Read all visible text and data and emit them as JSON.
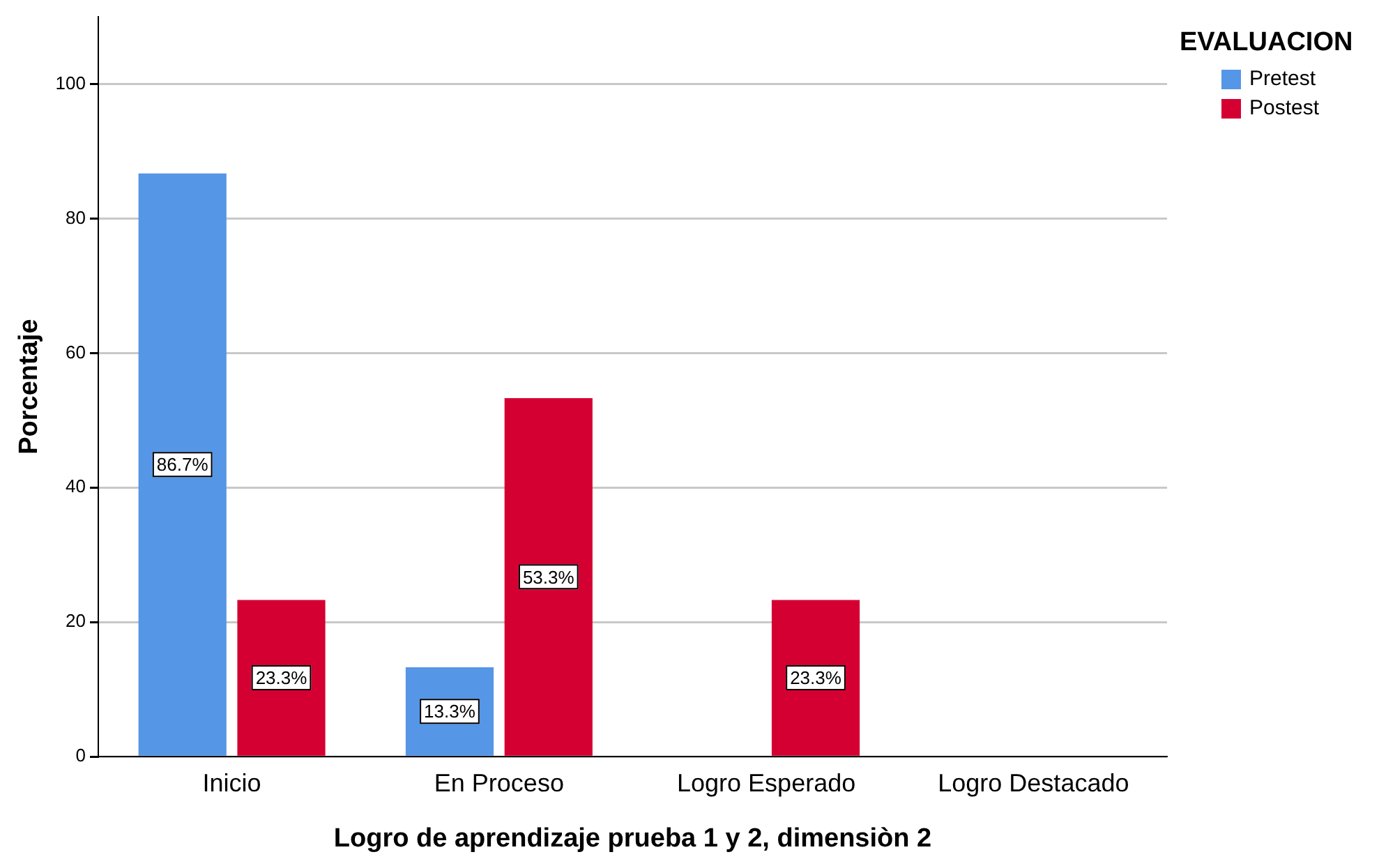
{
  "chart_data": {
    "type": "bar",
    "xlabel": "Logro de aprendizaje prueba 1 y 2, dimensiòn 2",
    "ylabel": "Porcentaje",
    "legend_title": "EVALUACION",
    "legend": "top right",
    "grid": "y",
    "categories": [
      "Inicio",
      "En Proceso",
      "Logro Esperado",
      "Logro Destacado"
    ],
    "ylim": [
      0,
      110
    ],
    "yticks": [
      0,
      20,
      40,
      60,
      80,
      100
    ],
    "series": [
      {
        "name": "Pretest",
        "color": "#5596e6",
        "values": [
          86.7,
          13.3,
          null,
          null
        ],
        "value_labels": [
          "86.7%",
          "13.3%",
          null,
          null
        ]
      },
      {
        "name": "Postest",
        "color": "#d50032",
        "values": [
          23.3,
          53.3,
          23.3,
          null
        ],
        "value_labels": [
          "23.3%",
          "53.3%",
          "23.3%",
          null
        ]
      }
    ]
  }
}
